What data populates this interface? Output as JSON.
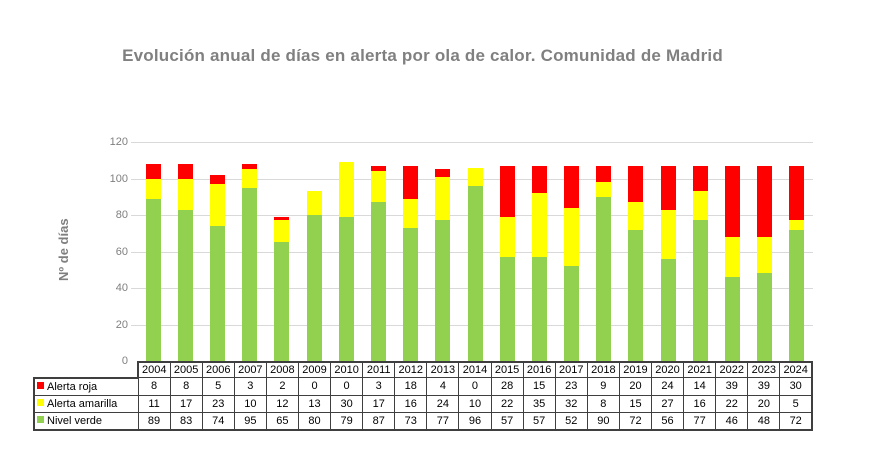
{
  "header": {
    "title": "Evolución anual de días en alerta por ola de calor. Comunidad de Madrid",
    "title_color": "#808080"
  },
  "chart_data": {
    "type": "bar",
    "stacked": true,
    "title": "Evolución anual de días en alerta por ola de calor. Comunidad de Madrid",
    "xlabel": "",
    "ylabel": "Nº de días",
    "ylim": [
      0,
      120
    ],
    "yticks": [
      0,
      20,
      40,
      60,
      80,
      100,
      120
    ],
    "grid": true,
    "legend_position": "table-below",
    "categories": [
      "2004",
      "2005",
      "2006",
      "2007",
      "2008",
      "2009",
      "2010",
      "2011",
      "2012",
      "2013",
      "2014",
      "2015",
      "2016",
      "2017",
      "2018",
      "2019",
      "2020",
      "2021",
      "2022",
      "2023",
      "2024"
    ],
    "series": [
      {
        "name": "Alerta roja",
        "color": "#FF0000",
        "values": [
          8,
          8,
          5,
          3,
          2,
          0,
          0,
          3,
          18,
          4,
          0,
          28,
          15,
          23,
          9,
          20,
          24,
          14,
          39,
          39,
          30
        ]
      },
      {
        "name": "Alerta amarilla",
        "color": "#FFFF00",
        "values": [
          11,
          17,
          23,
          10,
          12,
          13,
          30,
          17,
          16,
          24,
          10,
          22,
          35,
          32,
          8,
          15,
          27,
          16,
          22,
          20,
          5
        ]
      },
      {
        "name": "Nivel verde",
        "color": "#92D050",
        "values": [
          89,
          83,
          74,
          95,
          65,
          80,
          79,
          87,
          73,
          77,
          96,
          57,
          57,
          52,
          90,
          72,
          56,
          77,
          46,
          48,
          72
        ]
      }
    ],
    "stack_order_bottom_to_top": [
      "Nivel verde",
      "Alerta amarilla",
      "Alerta roja"
    ],
    "gridline_color": "#D9D9D9",
    "axis_text_color": "#7F7F7F",
    "table_border_color": "#3F3F3F"
  }
}
